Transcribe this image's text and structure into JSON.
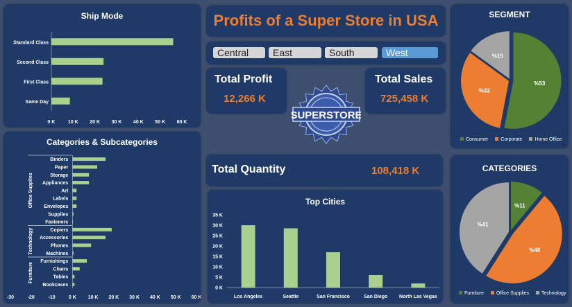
{
  "title": "Profits of a Super Store in USA",
  "colors": {
    "bar": "#a9d08e",
    "green": "#548235",
    "orange": "#ed7d31",
    "gray": "#a5a5a5",
    "accent": "#ed7d31",
    "slicer_selected": "#5b9bd5"
  },
  "regions": [
    {
      "label": "Central",
      "selected": false
    },
    {
      "label": "East",
      "selected": false
    },
    {
      "label": "South",
      "selected": false
    },
    {
      "label": "West",
      "selected": true
    }
  ],
  "kpis": {
    "profit_label": "Total Profit",
    "profit_value": "12,266 K",
    "sales_label": "Total Sales",
    "sales_value": "725,458 K",
    "quantity_label": "Total Quantity",
    "quantity_value": "108,418 K"
  },
  "logo_text": "SUPERSTORE",
  "chart_data": [
    {
      "type": "bar",
      "orientation": "horizontal",
      "title": "Ship Mode",
      "categories": [
        "Standard Class",
        "Second Class",
        "First Class",
        "Same Day"
      ],
      "values": [
        56000,
        24000,
        23500,
        8500
      ],
      "xlim": [
        0,
        60000
      ],
      "ticks": [
        "0 K",
        "10 K",
        "20 K",
        "30 K",
        "40 K",
        "50 K",
        "60 K"
      ]
    },
    {
      "type": "bar",
      "orientation": "horizontal",
      "title": "Categories &  Subcategories",
      "groups": [
        {
          "name": "Office Supplies",
          "items": [
            {
              "label": "Binders",
              "value": 16
            },
            {
              "label": "Paper",
              "value": 12
            },
            {
              "label": "Storage",
              "value": 8
            },
            {
              "label": "Appliances",
              "value": 8
            },
            {
              "label": "Art",
              "value": 2
            },
            {
              "label": "Labels",
              "value": 2
            },
            {
              "label": "Envelopes",
              "value": 2
            },
            {
              "label": "Supplies",
              "value": 0.5
            },
            {
              "label": "Fasteners",
              "value": 0.2
            }
          ]
        },
        {
          "name": "Technology",
          "items": [
            {
              "label": "Copiers",
              "value": 19
            },
            {
              "label": "Accessories",
              "value": 16
            },
            {
              "label": "Phones",
              "value": 9
            },
            {
              "label": "Machines",
              "value": 0.5
            }
          ]
        },
        {
          "name": "Furniture",
          "items": [
            {
              "label": "Furnishings",
              "value": 7
            },
            {
              "label": "Chairs",
              "value": 3.5
            },
            {
              "label": "Tables",
              "value": 1
            },
            {
              "label": "Bookcases",
              "value": 1
            }
          ]
        }
      ],
      "xlim": [
        -30,
        60
      ],
      "ticks": [
        "-30",
        "-20",
        "-10",
        "0 K",
        "10 K",
        "20 K",
        "30 K",
        "40 K",
        "50 K",
        "60 K"
      ]
    },
    {
      "type": "bar",
      "title": "Top Cities",
      "categories": [
        "Los Angeles",
        "Seattle",
        "San Francisco",
        "San Diego",
        "North Las Vegas"
      ],
      "values": [
        30000,
        28500,
        17000,
        6000,
        2000
      ],
      "ylim": [
        0,
        35000
      ],
      "ticks": [
        "0 K",
        "5 K",
        "10 K",
        "15 K",
        "20 K",
        "25 K",
        "30 K",
        "35 K"
      ]
    },
    {
      "type": "pie",
      "title": "SEGMENT",
      "slices": [
        {
          "name": "Consumer",
          "value": 53,
          "label": "%53",
          "color": "#548235"
        },
        {
          "name": "Corporate",
          "value": 32,
          "label": "%32",
          "color": "#ed7d31"
        },
        {
          "name": "Home Office",
          "value": 15,
          "label": "%15",
          "color": "#a5a5a5"
        }
      ]
    },
    {
      "type": "pie",
      "title": "CATEGORIES",
      "slices": [
        {
          "name": "Furniture",
          "value": 11,
          "label": "%11",
          "color": "#548235"
        },
        {
          "name": "Office Supplies",
          "value": 48,
          "label": "%48",
          "color": "#ed7d31"
        },
        {
          "name": "Technology",
          "value": 41,
          "label": "%41",
          "color": "#a5a5a5"
        }
      ]
    }
  ]
}
